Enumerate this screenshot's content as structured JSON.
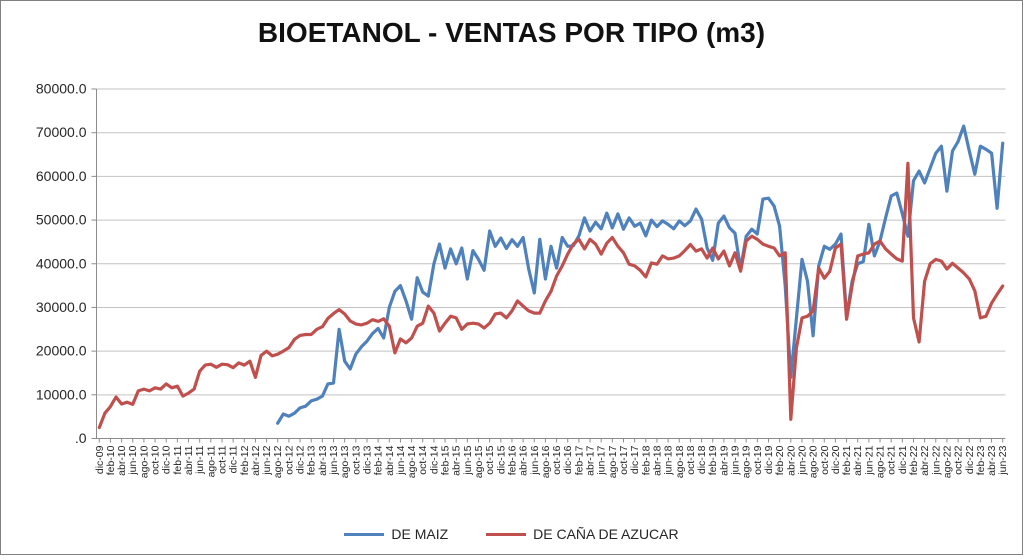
{
  "chart_data": {
    "type": "line",
    "title": "BIOETANOL - VENTAS POR TIPO (m3)",
    "xlabel": "",
    "ylabel": "",
    "grid": "horizontal",
    "legend_position": "bottom-center",
    "colors": {
      "maiz_blue": "#4F81BD",
      "cana_red": "#C0504D",
      "gridline": "#C3C3C3",
      "axis_line": "#8C8C8C",
      "tick_text": "#262626",
      "background": "#FFFFFF"
    },
    "y_axis": {
      "min": 0,
      "max": 80000,
      "step": 10000,
      "tick_labels": [
        ".0",
        "10000.0",
        "20000.0",
        "30000.0",
        "40000.0",
        "50000.0",
        "60000.0",
        "70000.0",
        "80000.0"
      ]
    },
    "x_axis": {
      "interval": "monthly",
      "start": "dic-09",
      "end": "jun-23",
      "label_every_n_months": 2,
      "tick_labels": [
        "dic-09",
        "feb-10",
        "abr-10",
        "jun-10",
        "ago-10",
        "oct-10",
        "dic-10",
        "feb-11",
        "abr-11",
        "jun-11",
        "ago-11",
        "oct-11",
        "dic-11",
        "feb-12",
        "abr-12",
        "jun-12",
        "ago-12",
        "oct-12",
        "dic-12",
        "feb-13",
        "abr-13",
        "jun-13",
        "ago-13",
        "oct-13",
        "dic-13",
        "feb-14",
        "abr-14",
        "jun-14",
        "ago-14",
        "oct-14",
        "dic-14",
        "feb-15",
        "abr-15",
        "jun-15",
        "ago-15",
        "oct-15",
        "dic-15",
        "feb-16",
        "abr-16",
        "jun-16",
        "ago-16",
        "oct-16",
        "dic-16",
        "feb-17",
        "abr-17",
        "jun-17",
        "ago-17",
        "oct-17",
        "dic-17",
        "feb-18",
        "abr-18",
        "jun-18",
        "ago-18",
        "oct-18",
        "dic-18",
        "feb-19",
        "abr-19",
        "jun-19",
        "ago-19",
        "oct-19",
        "dic-19",
        "feb-20",
        "abr-20",
        "jun-20",
        "ago-20",
        "oct-20",
        "dic-20",
        "feb-21",
        "abr-21",
        "jun-21",
        "ago-21",
        "oct-21",
        "dic-21",
        "feb-22",
        "abr-22",
        "jun-22",
        "ago-22",
        "oct-22",
        "dic-22",
        "feb-23",
        "abr-23",
        "jun-23"
      ]
    },
    "series": [
      {
        "name": "DE MAIZ",
        "color": "#4F81BD",
        "values": [
          null,
          null,
          null,
          null,
          null,
          null,
          null,
          null,
          null,
          null,
          null,
          null,
          null,
          null,
          null,
          null,
          null,
          null,
          null,
          null,
          null,
          null,
          null,
          null,
          null,
          null,
          null,
          null,
          null,
          null,
          null,
          null,
          3500,
          5600,
          5100,
          5800,
          7000,
          7400,
          8600,
          9000,
          9700,
          12500,
          12700,
          25000,
          17700,
          15900,
          19300,
          21000,
          22300,
          24000,
          25200,
          23000,
          30000,
          33700,
          35000,
          31500,
          27300,
          36800,
          33500,
          32600,
          40000,
          44500,
          39000,
          43400,
          40000,
          43600,
          36500,
          43000,
          41000,
          38500,
          47500,
          44000,
          45900,
          43500,
          45500,
          44000,
          46000,
          38800,
          33300,
          45600,
          36500,
          44000,
          39000,
          46000,
          44000,
          44100,
          46400,
          50500,
          47500,
          49500,
          48000,
          51600,
          48200,
          51400,
          47900,
          50500,
          48600,
          49300,
          46400,
          50000,
          48500,
          49800,
          49000,
          48000,
          49800,
          48700,
          49800,
          52500,
          50200,
          43600,
          40800,
          49300,
          50900,
          48200,
          47000,
          38800,
          46300,
          47900,
          46800,
          54800,
          55000,
          53200,
          48600,
          35000,
          14000,
          27500,
          41000,
          36000,
          23500,
          39500,
          44000,
          43300,
          44500,
          46800,
          27700,
          36000,
          40000,
          40500,
          49000,
          41800,
          45200,
          50500,
          55500,
          56200,
          51400,
          46300,
          59000,
          61200,
          58500,
          61900,
          65300,
          66900,
          56600,
          65800,
          68000,
          71500,
          65800,
          60500,
          66900,
          66200,
          65300,
          52700,
          67600
        ]
      },
      {
        "name": "DE CAÑA DE AZUCAR",
        "color": "#C0504D",
        "values": [
          2500,
          5800,
          7300,
          9500,
          7900,
          8300,
          7800,
          10900,
          11300,
          10900,
          11600,
          11300,
          12500,
          11600,
          12000,
          9700,
          10400,
          11300,
          15400,
          16800,
          17000,
          16300,
          17000,
          16900,
          16200,
          17300,
          16800,
          17700,
          14000,
          19000,
          20000,
          18900,
          19300,
          20000,
          20800,
          22700,
          23600,
          23800,
          23800,
          25000,
          25600,
          27500,
          28600,
          29500,
          28500,
          26900,
          26200,
          26000,
          26400,
          27200,
          26800,
          27400,
          25700,
          19600,
          22800,
          21900,
          23000,
          25700,
          26400,
          30300,
          28700,
          24600,
          26400,
          28000,
          27600,
          25000,
          26200,
          26400,
          26200,
          25300,
          26400,
          28500,
          28700,
          27600,
          29200,
          31500,
          30300,
          29200,
          28700,
          28700,
          31500,
          33700,
          37200,
          39500,
          42200,
          44500,
          45600,
          43400,
          45600,
          44500,
          42200,
          44700,
          46000,
          44000,
          42500,
          39900,
          39500,
          38500,
          37000,
          40200,
          39900,
          41800,
          41100,
          41300,
          41800,
          43000,
          44400,
          42900,
          43400,
          41300,
          43600,
          41100,
          42900,
          39500,
          42500,
          38300,
          45200,
          46300,
          45600,
          44500,
          44000,
          43600,
          41800,
          42500,
          4400,
          20700,
          27600,
          28000,
          29200,
          39000,
          36700,
          38300,
          43600,
          44500,
          27300,
          35000,
          41800,
          42200,
          42500,
          44500,
          45200,
          43400,
          42200,
          41100,
          40600,
          63000,
          27600,
          22100,
          36000,
          40000,
          41000,
          40600,
          38800,
          40100,
          39000,
          37900,
          36500,
          33800,
          27600,
          28000,
          31000,
          33000,
          34900
        ]
      }
    ]
  }
}
